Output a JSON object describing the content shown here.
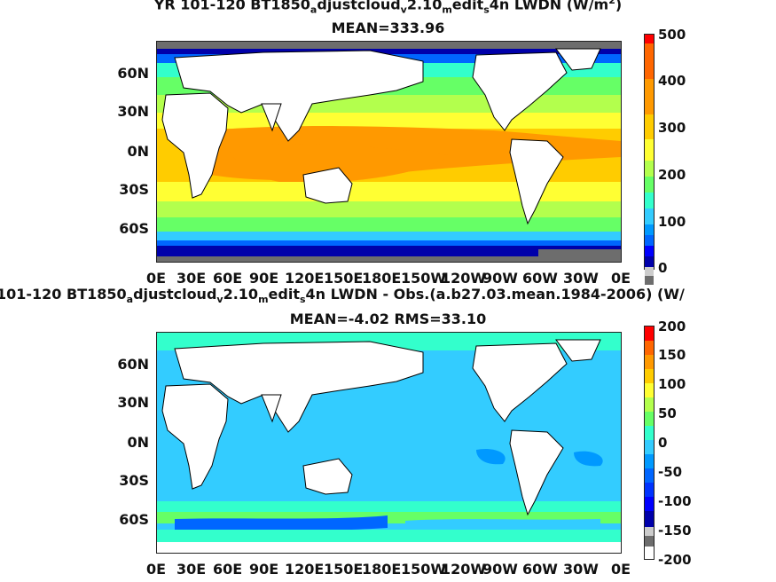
{
  "panel1": {
    "title_parts": [
      "YR 101-120 BT1850",
      "a",
      "djustcloud",
      "v",
      "2.10",
      "m",
      "edit",
      "s",
      "4n LWDN (W/m",
      "2",
      ")"
    ],
    "subtitle": "MEAN=333.96",
    "colorbar_ticks": [
      "500",
      "400",
      "300",
      "200",
      "100",
      "0"
    ]
  },
  "panel2": {
    "title_parts": [
      "101-120 BT1850",
      "a",
      "djustcloud",
      "v",
      "2.10",
      "m",
      "edit",
      "s",
      "4n LWDN - Obs.(a.b27.03.mean.1984-2006) (W/"
    ],
    "subtitle": "MEAN=-4.02 RMS=33.10",
    "colorbar_ticks": [
      "200",
      "150",
      "100",
      "50",
      "0",
      "-50",
      "-100",
      "-150",
      "-200"
    ]
  },
  "lat_labels": [
    "60N",
    "30N",
    "0N",
    "30S",
    "60S"
  ],
  "lon_labels": [
    "0E",
    "30E",
    "60E",
    "90E",
    "120E",
    "150E",
    "180E",
    "150W",
    "120W",
    "90W",
    "60W",
    "30W",
    "0E"
  ],
  "colors": {
    "land": "#ffffff",
    "ice": "#6d6d6d",
    "orange": "#ff9900",
    "yellow_orange": "#ffcc00",
    "yellow": "#ffff33",
    "light_green": "#b3ff4d",
    "green": "#66ff66",
    "cyan_green": "#33ffcc",
    "cyan": "#33ccff",
    "blue": "#0066ff",
    "dark_blue": "#0000aa"
  }
}
